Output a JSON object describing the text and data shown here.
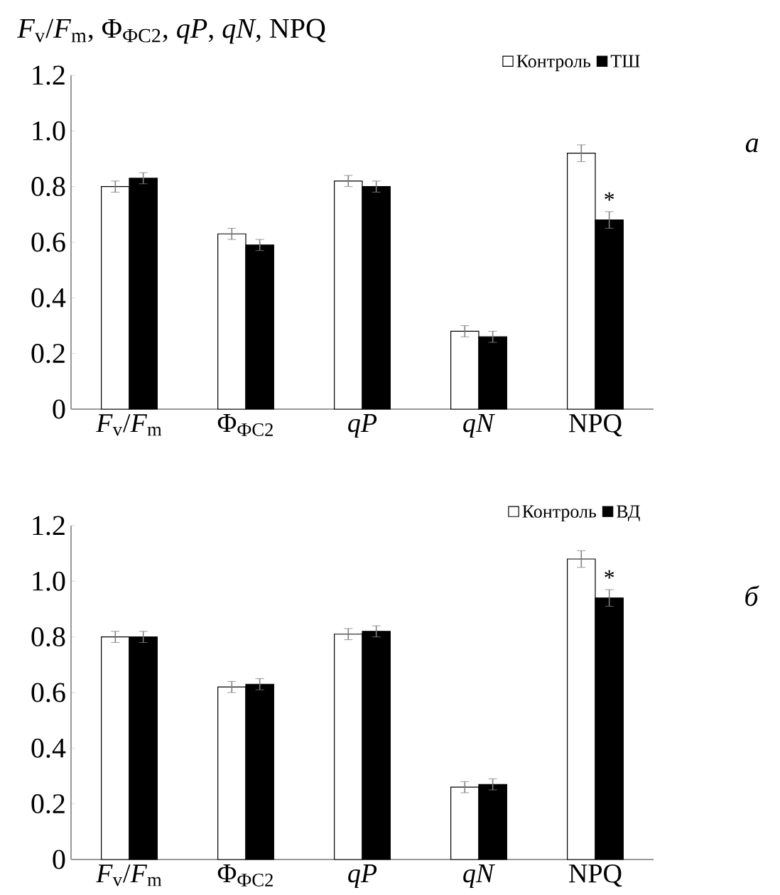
{
  "chart_data": [
    {
      "type": "bar",
      "ylabel": "*F*$_{v}$/*F*$_{m}$, Φ$_{ФС2}$, *qP*, *qN*, NPQ",
      "categories": [
        "*F*$_{v}$/*F*$_{m}$",
        "Φ$_{ФС2}$",
        "*qP*",
        "*qN*",
        "NPQ"
      ],
      "series": [
        {
          "name": "Контроль",
          "color": "#ffffff",
          "values": [
            0.8,
            0.63,
            0.82,
            0.28,
            0.92
          ],
          "errors": [
            0.02,
            0.02,
            0.02,
            0.02,
            0.03
          ]
        },
        {
          "name": "ТШ",
          "color": "#000000",
          "values": [
            0.83,
            0.59,
            0.8,
            0.26,
            0.68
          ],
          "errors": [
            0.02,
            0.02,
            0.02,
            0.02,
            0.03
          ]
        }
      ],
      "ylim": [
        0,
        1.2
      ],
      "yticks": [
        0,
        0.2,
        0.4,
        0.6,
        0.8,
        {
          "value": 1.0,
          "label": "1.0"
        },
        1.2
      ],
      "legend": "top right",
      "annotations": [
        "*а*",
        {
          "text": "*",
          "x": "NPQ",
          "y": 0.72
        }
      ]
    },
    {
      "type": "bar",
      "categories": [
        "*F*$_{v}$/*F*$_{m}$",
        "Φ$_{ФС2}$",
        "*qP*",
        "*qN*",
        "NPQ"
      ],
      "series": [
        {
          "name": "Контроль",
          "color": "#ffffff",
          "values": [
            0.8,
            0.62,
            0.81,
            0.26,
            1.08
          ],
          "errors": [
            0.02,
            0.02,
            0.02,
            0.02,
            0.03
          ]
        },
        {
          "name": "ВД",
          "color": "#000000",
          "values": [
            0.8,
            0.63,
            0.82,
            0.27,
            0.94
          ],
          "errors": [
            0.02,
            0.02,
            0.02,
            0.02,
            0.03
          ]
        }
      ],
      "ylim": [
        0,
        1.2
      ],
      "yticks": [
        0,
        0.2,
        0.4,
        0.6,
        0.8,
        {
          "value": 1.0,
          "label": "1.0"
        },
        1.2
      ],
      "legend": "top right",
      "annotations": [
        "*б*",
        {
          "text": "*",
          "x": "NPQ",
          "y": 0.98
        }
      ]
    }
  ]
}
